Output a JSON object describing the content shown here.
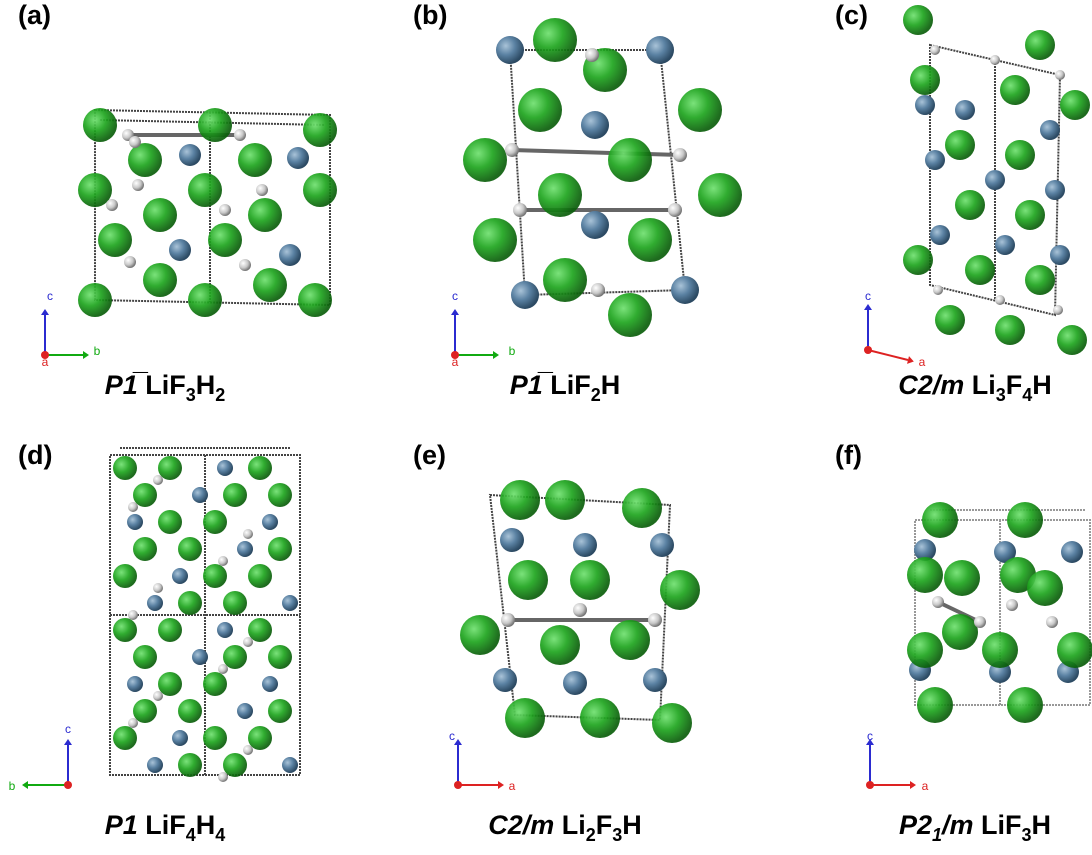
{
  "panels": [
    {
      "label": "(a)",
      "space_group": [
        "P1̅"
      ],
      "formula": [
        "Li",
        "F",
        "3",
        "H",
        "2"
      ],
      "axes": [
        "c",
        "a",
        "b"
      ]
    },
    {
      "label": "(b)",
      "space_group": [
        "P1̅"
      ],
      "formula": [
        "Li",
        "F",
        "2",
        "H"
      ],
      "axes": [
        "c",
        "a",
        "b"
      ]
    },
    {
      "label": "(c)",
      "space_group": [
        "C2/m"
      ],
      "formula": [
        "Li",
        "3",
        "F",
        "4",
        "H"
      ],
      "axes": [
        "c",
        "a"
      ]
    },
    {
      "label": "(d)",
      "space_group": [
        "P1"
      ],
      "formula": [
        "Li",
        "F",
        "4",
        "H",
        "4"
      ],
      "axes": [
        "c",
        "b"
      ]
    },
    {
      "label": "(e)",
      "space_group": [
        "C2/m"
      ],
      "formula": [
        "Li",
        "2",
        "F",
        "3",
        "H"
      ],
      "axes": [
        "c",
        "a"
      ]
    },
    {
      "label": "(f)",
      "space_group": [
        "P2",
        "1",
        "/m"
      ],
      "formula": [
        "Li",
        "F",
        "3",
        "H"
      ],
      "axes": [
        "c",
        "a"
      ]
    }
  ]
}
